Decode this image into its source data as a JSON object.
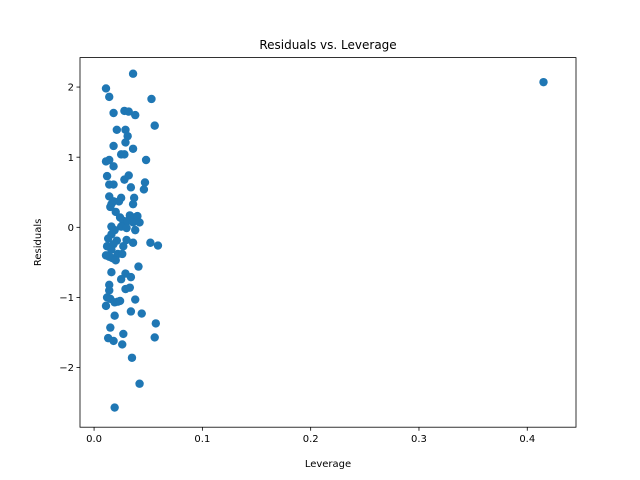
{
  "chart_data": {
    "type": "scatter",
    "title": "Residuals vs. Leverage",
    "xlabel": "Leverage",
    "ylabel": "Residuals",
    "xlim": [
      -0.013,
      0.445
    ],
    "ylim": [
      -2.85,
      2.42
    ],
    "xticks": [
      0.0,
      0.1,
      0.2,
      0.3,
      0.4
    ],
    "xtick_labels": [
      "0.0",
      "0.1",
      "0.2",
      "0.3",
      "0.4"
    ],
    "yticks": [
      -2,
      -1,
      0,
      1,
      2
    ],
    "ytick_labels": [
      "−2",
      "−1",
      "0",
      "1",
      "2"
    ],
    "grid": false,
    "marker_color": "#1f77b4",
    "series": [
      {
        "points": [
          [
            0.415,
            2.07
          ],
          [
            0.036,
            2.19
          ],
          [
            0.011,
            1.98
          ],
          [
            0.014,
            1.86
          ],
          [
            0.053,
            1.83
          ],
          [
            0.028,
            1.66
          ],
          [
            0.032,
            1.65
          ],
          [
            0.018,
            1.63
          ],
          [
            0.038,
            1.6
          ],
          [
            0.056,
            1.45
          ],
          [
            0.021,
            1.39
          ],
          [
            0.029,
            1.39
          ],
          [
            0.031,
            1.3
          ],
          [
            0.029,
            1.21
          ],
          [
            0.018,
            1.16
          ],
          [
            0.036,
            1.12
          ],
          [
            0.025,
            1.04
          ],
          [
            0.028,
            1.04
          ],
          [
            0.011,
            0.94
          ],
          [
            0.014,
            0.96
          ],
          [
            0.048,
            0.96
          ],
          [
            0.018,
            0.87
          ],
          [
            0.012,
            0.73
          ],
          [
            0.032,
            0.74
          ],
          [
            0.028,
            0.68
          ],
          [
            0.047,
            0.64
          ],
          [
            0.014,
            0.61
          ],
          [
            0.018,
            0.61
          ],
          [
            0.034,
            0.57
          ],
          [
            0.046,
            0.54
          ],
          [
            0.014,
            0.44
          ],
          [
            0.025,
            0.42
          ],
          [
            0.037,
            0.42
          ],
          [
            0.018,
            0.37
          ],
          [
            0.023,
            0.37
          ],
          [
            0.016,
            0.33
          ],
          [
            0.015,
            0.29
          ],
          [
            0.036,
            0.33
          ],
          [
            0.02,
            0.22
          ],
          [
            0.024,
            0.14
          ],
          [
            0.033,
            0.17
          ],
          [
            0.037,
            0.14
          ],
          [
            0.04,
            0.16
          ],
          [
            0.027,
            0.09
          ],
          [
            0.031,
            0.09
          ],
          [
            0.036,
            0.07
          ],
          [
            0.042,
            0.07
          ],
          [
            0.025,
            0.01
          ],
          [
            0.016,
            0.01
          ],
          [
            0.019,
            -0.04
          ],
          [
            0.03,
            -0.01
          ],
          [
            0.038,
            -0.04
          ],
          [
            0.016,
            -0.1
          ],
          [
            0.013,
            -0.16
          ],
          [
            0.021,
            -0.19
          ],
          [
            0.03,
            -0.18
          ],
          [
            0.052,
            -0.22
          ],
          [
            0.036,
            -0.22
          ],
          [
            0.059,
            -0.26
          ],
          [
            0.012,
            -0.27
          ],
          [
            0.018,
            -0.24
          ],
          [
            0.016,
            -0.32
          ],
          [
            0.027,
            -0.27
          ],
          [
            0.011,
            -0.4
          ],
          [
            0.022,
            -0.38
          ],
          [
            0.026,
            -0.38
          ],
          [
            0.014,
            -0.42
          ],
          [
            0.017,
            -0.44
          ],
          [
            0.02,
            -0.47
          ],
          [
            0.041,
            -0.56
          ],
          [
            0.016,
            -0.64
          ],
          [
            0.029,
            -0.66
          ],
          [
            0.025,
            -0.74
          ],
          [
            0.034,
            -0.71
          ],
          [
            0.014,
            -0.82
          ],
          [
            0.029,
            -0.88
          ],
          [
            0.033,
            -0.86
          ],
          [
            0.014,
            -0.9
          ],
          [
            0.012,
            -1.0
          ],
          [
            0.015,
            -1.02
          ],
          [
            0.038,
            -1.03
          ],
          [
            0.019,
            -1.07
          ],
          [
            0.022,
            -1.06
          ],
          [
            0.024,
            -1.05
          ],
          [
            0.011,
            -1.12
          ],
          [
            0.034,
            -1.2
          ],
          [
            0.044,
            -1.23
          ],
          [
            0.019,
            -1.26
          ],
          [
            0.057,
            -1.37
          ],
          [
            0.015,
            -1.43
          ],
          [
            0.027,
            -1.52
          ],
          [
            0.056,
            -1.57
          ],
          [
            0.013,
            -1.58
          ],
          [
            0.018,
            -1.62
          ],
          [
            0.026,
            -1.67
          ],
          [
            0.035,
            -1.86
          ],
          [
            0.042,
            -2.23
          ],
          [
            0.019,
            -2.57
          ]
        ]
      }
    ]
  }
}
